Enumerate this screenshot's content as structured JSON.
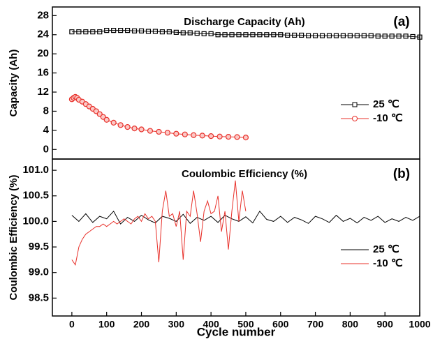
{
  "chart_data": [
    {
      "type": "line",
      "title": "Discharge Capacity (Ah)",
      "panel_label": "(a)",
      "ylabel": "Capacity (Ah)",
      "xlim": [
        -56,
        1000
      ],
      "ylim": [
        -2,
        29.8
      ],
      "yticks": [
        0,
        4,
        8,
        12,
        16,
        20,
        24,
        28
      ],
      "series": [
        {
          "name": "25 ℃",
          "color": "#000000",
          "marker": "square",
          "x": [
            0,
            20,
            40,
            60,
            80,
            100,
            120,
            140,
            160,
            180,
            200,
            220,
            240,
            260,
            280,
            300,
            320,
            340,
            360,
            380,
            400,
            420,
            440,
            460,
            480,
            500,
            520,
            540,
            560,
            580,
            600,
            620,
            640,
            660,
            680,
            700,
            720,
            740,
            760,
            780,
            800,
            820,
            840,
            860,
            880,
            900,
            920,
            940,
            960,
            980,
            1000
          ],
          "values": [
            24.6,
            24.6,
            24.6,
            24.6,
            24.6,
            24.9,
            24.9,
            24.9,
            24.9,
            24.8,
            24.8,
            24.7,
            24.7,
            24.6,
            24.6,
            24.5,
            24.4,
            24.4,
            24.3,
            24.2,
            24.2,
            24.0,
            24.0,
            24.0,
            24.0,
            24.0,
            24.0,
            24.0,
            24.0,
            24.0,
            24.0,
            23.9,
            23.9,
            23.9,
            23.8,
            23.8,
            23.8,
            23.8,
            23.8,
            23.8,
            23.8,
            23.8,
            23.8,
            23.8,
            23.7,
            23.7,
            23.7,
            23.7,
            23.7,
            23.6,
            23.5
          ]
        },
        {
          "name": "-10 ℃",
          "color": "#e8302a",
          "marker": "circle",
          "x": [
            0,
            5,
            10,
            15,
            20,
            30,
            40,
            50,
            60,
            70,
            80,
            90,
            100,
            120,
            140,
            160,
            180,
            200,
            225,
            250,
            275,
            300,
            325,
            350,
            375,
            400,
            425,
            450,
            475,
            500
          ],
          "values": [
            10.5,
            10.8,
            11.0,
            10.8,
            10.4,
            10.0,
            9.5,
            9.0,
            8.5,
            8.0,
            7.4,
            6.8,
            6.2,
            5.6,
            5.1,
            4.7,
            4.4,
            4.2,
            3.9,
            3.7,
            3.5,
            3.3,
            3.15,
            3.0,
            2.9,
            2.8,
            2.7,
            2.65,
            2.6,
            2.5
          ]
        }
      ]
    },
    {
      "type": "line",
      "title": "Coulombic Efficiency (%)",
      "panel_label": "(b)",
      "ylabel": "Coulombic Efficiency (%)",
      "xlabel": "Cycle number",
      "xlim": [
        -56,
        1000
      ],
      "xticks": [
        0,
        100,
        200,
        300,
        400,
        500,
        600,
        700,
        800,
        900,
        1000
      ],
      "ylim": [
        98.15,
        101.22
      ],
      "yticks": [
        98.5,
        {
          "value": 99,
          "label": "99.0"
        },
        99.5,
        {
          "value": 100,
          "label": "100.0"
        },
        100.5,
        {
          "value": 101,
          "label": "101.0"
        }
      ],
      "series": [
        {
          "name": "25 ℃",
          "color": "#000000",
          "x": [
            0,
            20,
            40,
            60,
            80,
            100,
            120,
            140,
            160,
            180,
            200,
            220,
            240,
            260,
            280,
            300,
            320,
            340,
            360,
            380,
            400,
            420,
            440,
            460,
            480,
            500,
            520,
            540,
            560,
            580,
            600,
            620,
            640,
            660,
            680,
            700,
            720,
            740,
            760,
            780,
            800,
            820,
            840,
            860,
            880,
            900,
            920,
            940,
            960,
            980,
            1000
          ],
          "values": [
            100.12,
            100.0,
            100.15,
            99.98,
            100.1,
            100.05,
            100.2,
            99.95,
            100.08,
            100.0,
            100.12,
            100.03,
            99.97,
            100.1,
            100.06,
            100.0,
            100.14,
            99.96,
            100.08,
            100.02,
            100.1,
            99.98,
            100.12,
            100.05,
            100.0,
            100.09,
            99.97,
            100.2,
            100.04,
            100.0,
            100.1,
            99.98,
            100.08,
            100.03,
            99.96,
            100.1,
            100.05,
            99.98,
            100.12,
            100.0,
            100.06,
            99.97,
            100.08,
            100.02,
            100.1,
            99.98,
            100.05,
            100.0,
            100.08,
            100.02,
            100.1
          ]
        },
        {
          "name": "-10 ℃",
          "color": "#e8302a",
          "x": [
            0,
            10,
            20,
            30,
            40,
            50,
            60,
            70,
            80,
            90,
            100,
            110,
            120,
            130,
            140,
            150,
            160,
            170,
            180,
            190,
            200,
            210,
            220,
            230,
            240,
            250,
            260,
            270,
            280,
            290,
            300,
            310,
            320,
            330,
            340,
            350,
            360,
            370,
            380,
            390,
            400,
            410,
            420,
            430,
            440,
            450,
            460,
            470,
            480,
            490,
            500
          ],
          "values": [
            99.25,
            99.15,
            99.5,
            99.65,
            99.75,
            99.8,
            99.85,
            99.9,
            99.9,
            99.95,
            99.9,
            99.95,
            100.0,
            99.95,
            100.0,
            100.05,
            100.0,
            99.95,
            100.05,
            100.1,
            100.0,
            100.15,
            100.05,
            100.1,
            100.0,
            99.2,
            100.2,
            100.6,
            100.1,
            100.15,
            99.9,
            100.2,
            99.25,
            100.2,
            100.1,
            100.6,
            100.15,
            99.6,
            100.2,
            100.4,
            100.15,
            100.2,
            100.5,
            99.8,
            100.2,
            99.45,
            100.2,
            100.8,
            100.0,
            100.6,
            100.2
          ]
        }
      ]
    }
  ]
}
